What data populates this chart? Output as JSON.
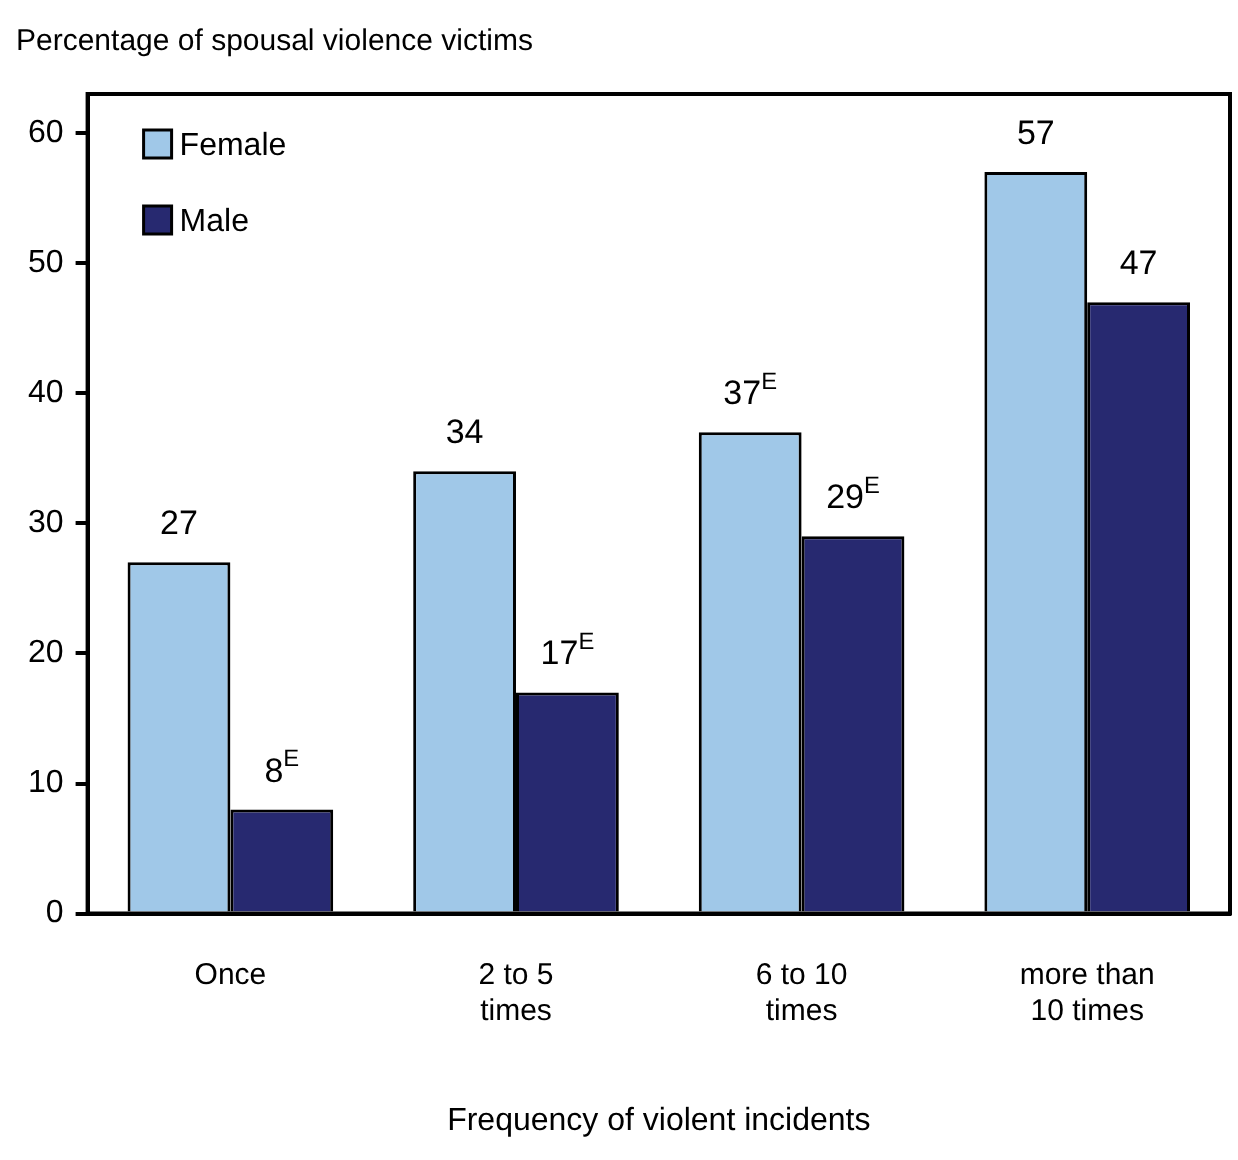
{
  "chart_data": {
    "type": "bar",
    "ylabel": "Percentage of spousal violence victims",
    "xlabel": "Frequency of violent incidents",
    "categories": [
      "Once",
      "2 to 5 times",
      "6 to 10 times",
      "more than 10 times"
    ],
    "series": [
      {
        "name": "Female",
        "color": "#a0c8e8",
        "values": [
          27,
          34,
          37,
          57
        ],
        "value_labels": [
          "27",
          "34",
          "37$^{E}$",
          "57"
        ]
      },
      {
        "name": "Male",
        "color": "#272970",
        "values": [
          8,
          17,
          29,
          47
        ],
        "value_labels": [
          "8$^{E}$",
          "17$^{E}$",
          "29$^{E}$",
          "47"
        ]
      }
    ],
    "ylim": [
      0,
      63
    ],
    "yticks": [
      0,
      10,
      20,
      30,
      40,
      50,
      60
    ],
    "grid": false,
    "legend": "top left"
  }
}
